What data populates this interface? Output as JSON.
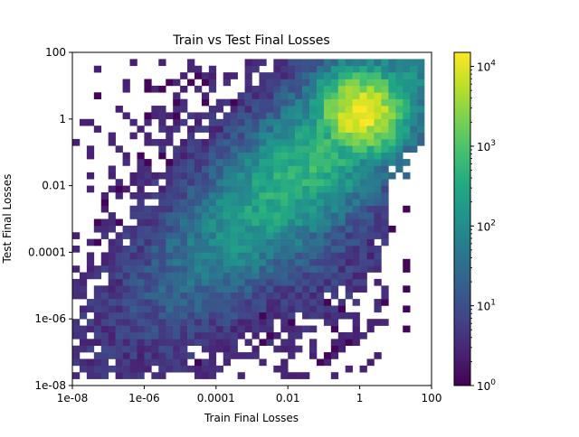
{
  "chart_data": {
    "type": "heatmap",
    "title": "Train vs Test Final Losses",
    "xlabel": "Train Final Losses",
    "ylabel": "Test Final Losses",
    "xscale": "log",
    "yscale": "log",
    "xlim": [
      1e-08,
      100
    ],
    "ylim": [
      1e-08,
      100
    ],
    "x_ticks": [
      {
        "value": 1e-08,
        "label": "1e-08"
      },
      {
        "value": 1e-06,
        "label": "1e-06"
      },
      {
        "value": 0.0001,
        "label": "0.0001"
      },
      {
        "value": 0.01,
        "label": "0.01"
      },
      {
        "value": 1,
        "label": "1"
      },
      {
        "value": 100,
        "label": "100"
      }
    ],
    "y_ticks": [
      {
        "value": 1e-08,
        "label": "1e-08"
      },
      {
        "value": 1e-06,
        "label": "1e-06"
      },
      {
        "value": 0.0001,
        "label": "0.0001"
      },
      {
        "value": 0.01,
        "label": "0.01"
      },
      {
        "value": 1,
        "label": "1"
      },
      {
        "value": 100,
        "label": "100"
      }
    ],
    "colorbar": {
      "scale": "log",
      "range": [
        1,
        15000
      ],
      "colormap": "viridis",
      "ticks": [
        {
          "value": 1,
          "base": "10",
          "exp": "0"
        },
        {
          "value": 10,
          "base": "10",
          "exp": "1"
        },
        {
          "value": 100,
          "base": "10",
          "exp": "2"
        },
        {
          "value": 1000,
          "base": "10",
          "exp": "3"
        },
        {
          "value": 10000,
          "base": "10",
          "exp": "4"
        }
      ]
    },
    "grid": false,
    "density": {
      "peak_log10_x": 0.05,
      "peak_log10_y": 0.2,
      "peak_count": 15000
    }
  }
}
